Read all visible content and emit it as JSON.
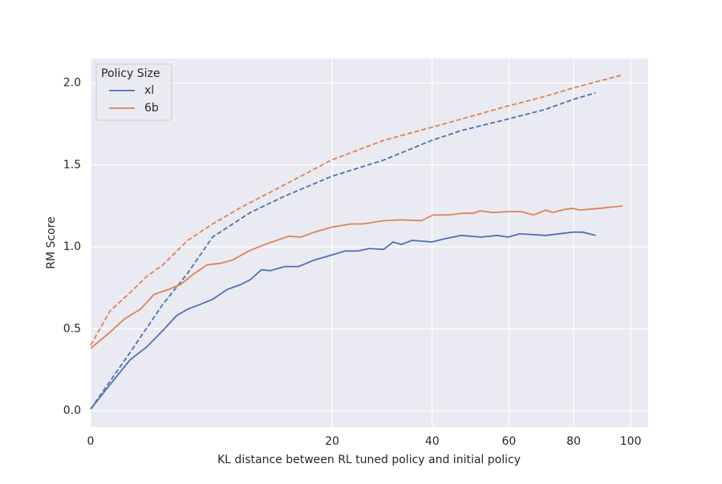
{
  "chart_data": {
    "type": "line",
    "xlabel": "KL distance between RL tuned policy and initial policy",
    "ylabel": "RM Score",
    "xscale": "sqrt",
    "xlim": [
      0,
      106.6
    ],
    "xticks": [
      0,
      20,
      40,
      60,
      80,
      100
    ],
    "ylim": [
      -0.1,
      2.15
    ],
    "yticks": [
      {
        "value": 0,
        "label": "0.0"
      },
      0.5,
      {
        "value": 1,
        "label": "1.0"
      },
      1.5,
      {
        "value": 2,
        "label": "2.0"
      }
    ],
    "grid": true,
    "legend_title": "Policy Size",
    "legend_loc": "upper left",
    "series": [
      {
        "name": "xl",
        "color": "#4c72b0",
        "x": [
          0,
          0.13,
          0.53,
          1.08,
          1.79,
          2.53,
          3.23,
          4.14,
          5.1,
          6.38,
          7.72,
          8.74,
          10.0,
          11.08,
          12.93,
          14.81,
          17.18,
          19.87,
          22.19,
          24.49,
          26.59,
          29.42,
          31.38,
          33.06,
          35.5,
          39.88,
          43.1,
          47.1,
          52.3,
          56.7,
          59.7,
          63.2,
          71.0,
          79.8,
          83.0,
          87.4
        ],
        "values": [
          0.01,
          0.16,
          0.31,
          0.39,
          0.49,
          0.58,
          0.62,
          0.65,
          0.68,
          0.74,
          0.77,
          0.8,
          0.86,
          0.855,
          0.88,
          0.88,
          0.92,
          0.95,
          0.975,
          0.975,
          0.99,
          0.985,
          1.03,
          1.015,
          1.04,
          1.03,
          1.05,
          1.07,
          1.06,
          1.07,
          1.06,
          1.08,
          1.07,
          1.09,
          1.09,
          1.07
        ],
        "fit": {
          "dash": true,
          "x": [
            0,
            0.53,
            1.79,
            3.23,
            5.1,
            8.74,
            12.93,
            19.87,
            29.42,
            39.88,
            47.1,
            59.7,
            71.0,
            79.8,
            87.4
          ],
          "values": [
            0.01,
            0.355,
            0.65,
            0.84,
            1.06,
            1.21,
            1.31,
            1.43,
            1.53,
            1.65,
            1.71,
            1.78,
            1.84,
            1.9,
            1.94
          ]
        }
      },
      {
        "name": "6b",
        "color": "#dd8452",
        "x": [
          0,
          0.13,
          0.39,
          0.85,
          1.38,
          2.08,
          2.77,
          3.56,
          4.64,
          5.79,
          6.92,
          8.57,
          10.4,
          13.47,
          15.15,
          17.18,
          19.87,
          23.18,
          25.37,
          29.42,
          33.06,
          37.5,
          40.24,
          44.1,
          47.1,
          50.2,
          51.9,
          55.5,
          59.7,
          63.6,
          67.3,
          71.0,
          73.3,
          77.3,
          79.8,
          82.0,
          88.7,
          97.0
        ],
        "values": [
          0.38,
          0.48,
          0.56,
          0.62,
          0.71,
          0.74,
          0.77,
          0.83,
          0.89,
          0.9,
          0.92,
          0.975,
          1.015,
          1.065,
          1.06,
          1.09,
          1.12,
          1.14,
          1.14,
          1.16,
          1.165,
          1.16,
          1.195,
          1.195,
          1.205,
          1.205,
          1.22,
          1.21,
          1.215,
          1.215,
          1.195,
          1.225,
          1.21,
          1.23,
          1.235,
          1.225,
          1.235,
          1.25
        ],
        "fit": {
          "dash": true,
          "x": [
            0,
            0.13,
            0.53,
            1.08,
            1.79,
            3.23,
            5.1,
            7.72,
            12.93,
            19.87,
            29.42,
            39.88,
            47.1,
            59.7,
            71.0,
            79.8,
            97.0
          ],
          "values": [
            0.4,
            0.61,
            0.72,
            0.82,
            0.89,
            1.04,
            1.14,
            1.24,
            1.38,
            1.53,
            1.65,
            1.73,
            1.78,
            1.86,
            1.92,
            1.97,
            2.05
          ]
        }
      }
    ]
  }
}
